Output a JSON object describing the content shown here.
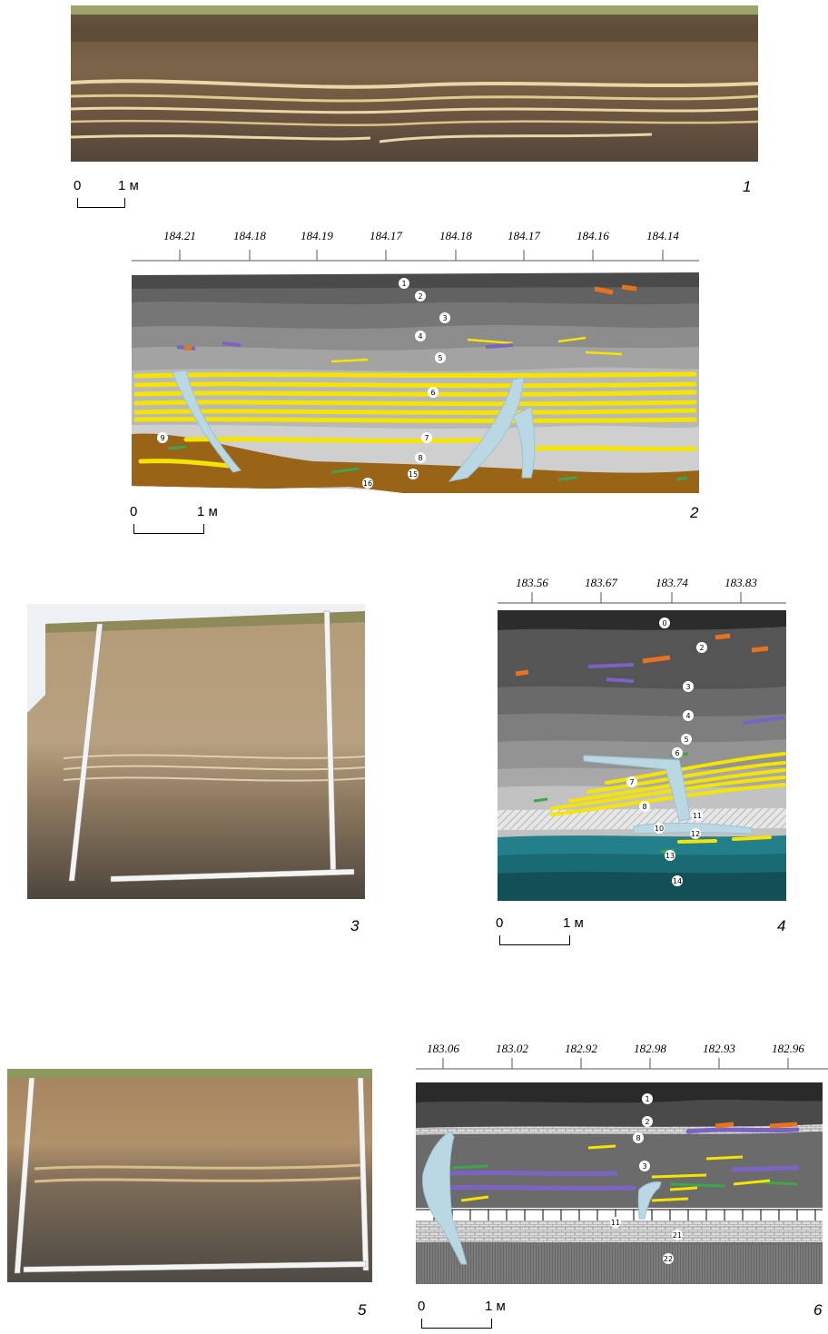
{
  "panels": {
    "p1": {
      "number": "1"
    },
    "p2": {
      "number": "2",
      "elevations": [
        "184.21",
        "184.18",
        "184.19",
        "184.17",
        "184.18",
        "184.17",
        "184.16",
        "184.14"
      ]
    },
    "p3": {
      "number": "3"
    },
    "p4": {
      "number": "4",
      "elevations": [
        "183.56",
        "183.67",
        "183.74",
        "183.83"
      ]
    },
    "p5": {
      "number": "5"
    },
    "p6": {
      "number": "6",
      "elevations": [
        "183.06",
        "183.02",
        "182.92",
        "182.98",
        "182.93",
        "182.96"
      ]
    }
  },
  "scale": {
    "zero": "0",
    "one_m": "1 м"
  },
  "layer_labels": {
    "p2": [
      "1",
      "2",
      "3",
      "4",
      "5",
      "6",
      "7",
      "8",
      "9",
      "15",
      "16"
    ],
    "p4": [
      "0",
      "2",
      "3",
      "4",
      "5",
      "6",
      "7",
      "8",
      "10",
      "11",
      "12",
      "13",
      "14"
    ],
    "p6": [
      "1",
      "2",
      "8",
      "3",
      "11",
      "21",
      "22"
    ]
  },
  "colors": {
    "soil_dark": "#3a3a3a",
    "grey_mid": "#7a7a7a",
    "grey_light": "#b5b5b5",
    "sand_yellow": "#f5e400",
    "frost_wedge": "#b9d8e4",
    "teal": "#1d6f79",
    "brown": "#9a6417",
    "orange": "#e8731f",
    "purple": "#7b63c4",
    "green": "#3fa54a"
  }
}
